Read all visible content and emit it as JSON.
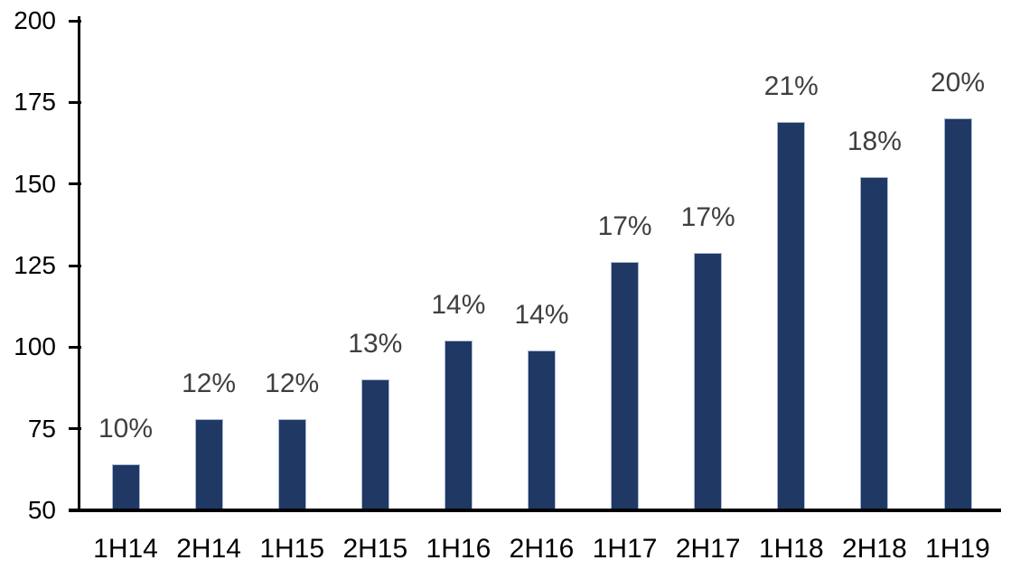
{
  "chart_data": {
    "type": "bar",
    "title": "",
    "xlabel": "",
    "ylabel": "",
    "categories": [
      "1H14",
      "2H14",
      "1H15",
      "2H15",
      "1H16",
      "2H16",
      "1H17",
      "2H17",
      "1H18",
      "2H18",
      "1H19"
    ],
    "values": [
      64,
      78,
      78,
      90,
      102,
      99,
      126,
      129,
      169,
      152,
      170
    ],
    "bar_labels": [
      "10%",
      "12%",
      "12%",
      "13%",
      "14%",
      "14%",
      "17%",
      "17%",
      "21%",
      "18%",
      "20%"
    ],
    "ylim": [
      50,
      200
    ],
    "yticks": [
      200,
      175,
      150,
      125,
      100,
      75,
      50
    ],
    "grid": false,
    "legend": null,
    "colors": {
      "bar_fill": "#1f3864",
      "bar_border": "#a9bad4",
      "data_label": "#3f3f3f",
      "axis_text": "#000000",
      "axis_line": "#000000"
    }
  }
}
